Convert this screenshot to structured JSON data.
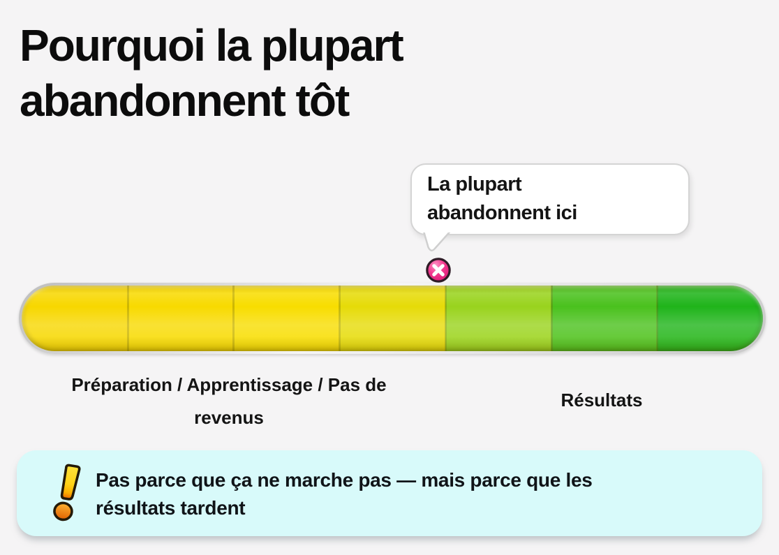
{
  "page": {
    "background": "#F5F4F5"
  },
  "title": {
    "lines": [
      "Pourquoi la plupart",
      "abandonnent tôt"
    ]
  },
  "callout": {
    "lines": [
      "La plupart",
      "abandonnent ici"
    ]
  },
  "timeline": {
    "type": "progress-gradient-bar",
    "segment_colors": [
      "#F7D700",
      "#F8DA00",
      "#F8DD00",
      "#E6DB08",
      "#99D31D",
      "#4AC11D",
      "#1FB41A"
    ],
    "divider_color": "rgba(105,100,0,0.30)",
    "marker": {
      "symbol": "x-cross",
      "position_pct": 56.6,
      "fill_top": "#FF93C6",
      "fill_main": "#F2388E",
      "fill_bottom": "#D81272",
      "ring_color": "#2E1B26",
      "cross_color": "#FFFFFF"
    },
    "labels": [
      {
        "lines": [
          "Préparation / Apprentissage / Pas de",
          "revenus"
        ]
      },
      {
        "lines": [
          "Résultats"
        ]
      }
    ]
  },
  "note": {
    "bg": "#D8FAFA",
    "icon": "exclamation-icon",
    "lines": [
      "Pas parce que ça ne marche pas — mais parce que les",
      "résultats tardent"
    ]
  }
}
